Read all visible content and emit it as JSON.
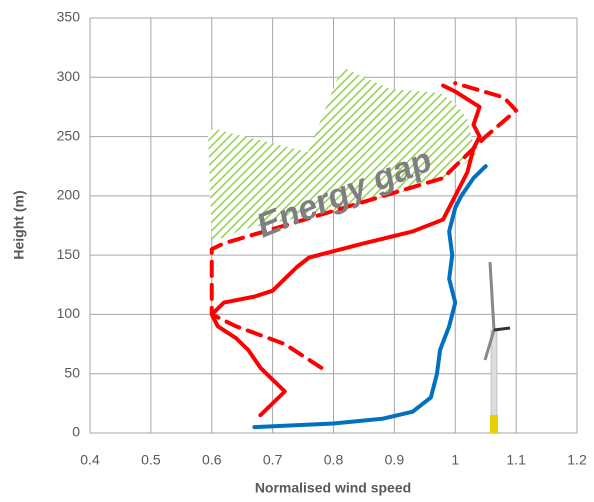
{
  "chart_data": {
    "type": "line",
    "x_label": "Normalised wind speed",
    "y_label": "Height (m)",
    "annotation": "Energy gap",
    "xlim": [
      0.4,
      1.2
    ],
    "xticks": [
      0.4,
      0.5,
      0.6,
      0.7,
      0.8,
      0.9,
      1,
      1.1,
      1.2
    ],
    "ylim": [
      0,
      350
    ],
    "yticks": [
      0,
      50,
      100,
      150,
      200,
      250,
      300,
      350
    ],
    "grid": true,
    "series": [
      {
        "color": "#0070c0",
        "dashed": false,
        "x": [
          0.67,
          0.8,
          0.88,
          0.93,
          0.96,
          0.97,
          0.975,
          0.99,
          1.0,
          0.99,
          0.995,
          0.99,
          1.0,
          1.01,
          1.03,
          1.05
        ],
        "values": [
          5,
          8,
          12,
          18,
          30,
          50,
          70,
          90,
          110,
          130,
          150,
          170,
          190,
          200,
          215,
          225
        ]
      },
      {
        "color": "#ff0000",
        "dashed": false,
        "x": [
          0.68,
          0.72,
          0.7,
          0.68,
          0.66,
          0.64,
          0.61,
          0.6,
          0.62,
          0.67,
          0.7,
          0.72,
          0.74,
          0.76,
          0.85,
          0.93,
          0.98,
          1.0,
          1.02,
          1.03,
          1.04,
          1.03,
          1.04,
          1.0,
          0.98
        ],
        "values": [
          15,
          35,
          45,
          55,
          70,
          80,
          90,
          100,
          110,
          115,
          120,
          130,
          140,
          148,
          160,
          170,
          180,
          200,
          220,
          240,
          250,
          260,
          275,
          288,
          293
        ]
      },
      {
        "color": "#ff0000",
        "dashed": true,
        "x": [
          0.78,
          0.72,
          0.64,
          0.6,
          0.6,
          0.6,
          0.6,
          0.62,
          0.72,
          0.85,
          0.98,
          1.02,
          1.05,
          1.1,
          1.08,
          1.0
        ],
        "values": [
          55,
          75,
          90,
          100,
          120,
          140,
          155,
          160,
          175,
          195,
          215,
          235,
          250,
          272,
          283,
          295
        ]
      }
    ]
  }
}
